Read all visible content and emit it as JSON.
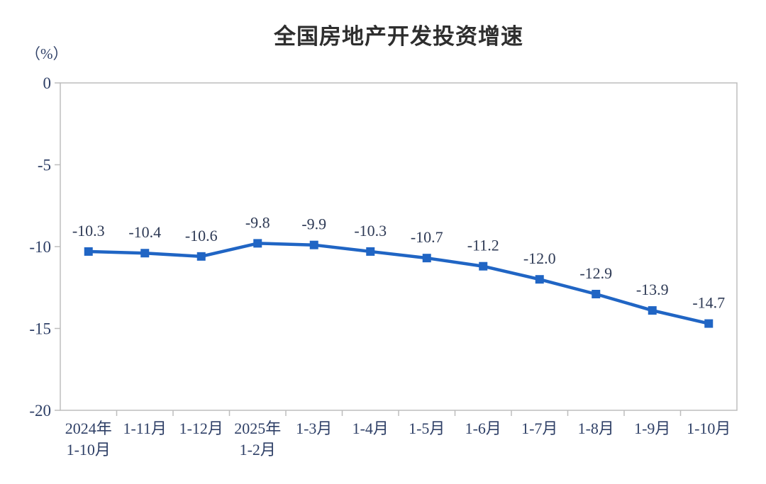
{
  "chart_data": {
    "type": "line",
    "title": "全国房地产开发投资增速",
    "unit_label": "（%）",
    "xlabel": "",
    "ylabel": "（%）",
    "categories": [
      [
        "2024年",
        "1-10月"
      ],
      [
        "1-11月"
      ],
      [
        "1-12月"
      ],
      [
        "2025年",
        "1-2月"
      ],
      [
        "1-3月"
      ],
      [
        "1-4月"
      ],
      [
        "1-5月"
      ],
      [
        "1-6月"
      ],
      [
        "1-7月"
      ],
      [
        "1-8月"
      ],
      [
        "1-9月"
      ],
      [
        "1-10月"
      ]
    ],
    "series": [
      {
        "name": "全国房地产开发投资增速",
        "values": [
          -10.3,
          -10.4,
          -10.6,
          -9.8,
          -9.9,
          -10.3,
          -10.7,
          -11.2,
          -12.0,
          -12.9,
          -13.9,
          -14.7
        ]
      }
    ],
    "data_labels": [
      "-10.3",
      "-10.4",
      "-10.6",
      "-9.8",
      "-9.9",
      "-10.3",
      "-10.7",
      "-11.2",
      "-12.0",
      "-12.9",
      "-13.9",
      "-14.7"
    ],
    "ylim": [
      -20,
      0
    ],
    "yticks": [
      0,
      -5,
      -10,
      -15,
      -20
    ],
    "ytick_labels": [
      "0",
      "-5",
      "-10",
      "-15",
      "-20"
    ],
    "grid": false,
    "legend_position": "none",
    "marker": "square",
    "colors": {
      "line": "#2065c4",
      "marker": "#2065c4",
      "data_label": "#2e3a55",
      "axis_label": "#2e3f66",
      "title": "#2e2e2e",
      "axis_line": "#bdbdbd"
    }
  }
}
